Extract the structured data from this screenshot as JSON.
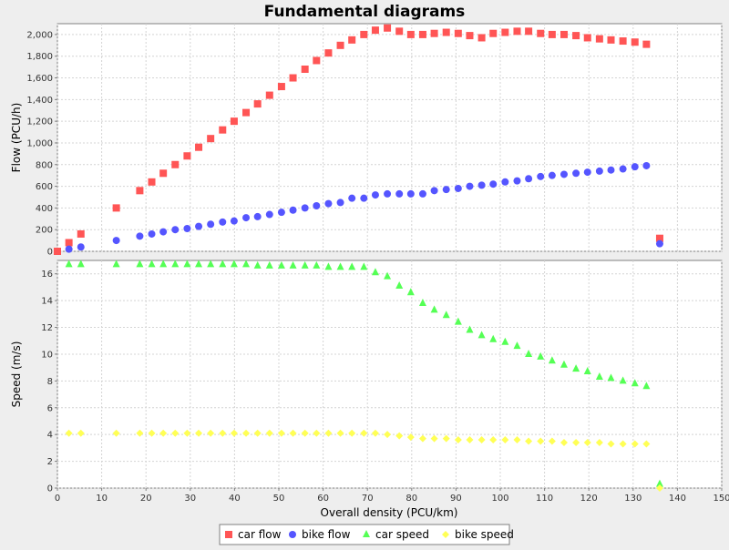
{
  "chart_data": {
    "type": "scatter",
    "title": "Fundamental diagrams",
    "xlabel": "Overall density (PCU/km)",
    "xlim": [
      0,
      150
    ],
    "x_ticks": [
      0,
      10,
      20,
      30,
      40,
      50,
      60,
      70,
      80,
      90,
      100,
      110,
      120,
      130,
      140,
      150
    ],
    "grid": true,
    "legend_position": "bottom-center",
    "panels": [
      {
        "ylabel": "Flow (PCU/h)",
        "ylim": [
          0,
          2100
        ],
        "y_ticks": [
          0,
          200,
          400,
          600,
          800,
          1000,
          1200,
          1400,
          1600,
          1800,
          2000
        ],
        "y_tick_labels": [
          "0",
          "200",
          "400",
          "600",
          "800",
          "1,000",
          "1,200",
          "1,400",
          "1,600",
          "1,800",
          "2,000"
        ],
        "series": [
          {
            "name": "car flow",
            "marker": "square",
            "color": "#ff5555",
            "points": [
              [
                0,
                0
              ],
              [
                2.6,
                80
              ],
              [
                5.3,
                160
              ],
              [
                13.3,
                400
              ],
              [
                18.6,
                560
              ],
              [
                21.3,
                640
              ],
              [
                23.9,
                720
              ],
              [
                26.6,
                800
              ],
              [
                29.3,
                880
              ],
              [
                31.9,
                960
              ],
              [
                34.6,
                1040
              ],
              [
                37.3,
                1120
              ],
              [
                39.9,
                1200
              ],
              [
                42.6,
                1280
              ],
              [
                45.2,
                1360
              ],
              [
                47.9,
                1440
              ],
              [
                50.6,
                1520
              ],
              [
                53.2,
                1600
              ],
              [
                55.9,
                1680
              ],
              [
                58.5,
                1760
              ],
              [
                61.2,
                1830
              ],
              [
                63.9,
                1900
              ],
              [
                66.5,
                1950
              ],
              [
                69.2,
                2000
              ],
              [
                71.8,
                2040
              ],
              [
                74.5,
                2060
              ],
              [
                77.2,
                2030
              ],
              [
                79.8,
                2000
              ],
              [
                82.5,
                2000
              ],
              [
                85.1,
                2010
              ],
              [
                87.8,
                2020
              ],
              [
                90.5,
                2010
              ],
              [
                93.1,
                1990
              ],
              [
                95.8,
                1970
              ],
              [
                98.4,
                2010
              ],
              [
                101.1,
                2020
              ],
              [
                103.8,
                2030
              ],
              [
                106.4,
                2030
              ],
              [
                109.1,
                2010
              ],
              [
                111.7,
                2000
              ],
              [
                114.4,
                2000
              ],
              [
                117.1,
                1990
              ],
              [
                119.7,
                1970
              ],
              [
                122.4,
                1960
              ],
              [
                125.0,
                1950
              ],
              [
                127.7,
                1940
              ],
              [
                130.4,
                1930
              ],
              [
                133.0,
                1910
              ],
              [
                136.0,
                120
              ]
            ]
          },
          {
            "name": "bike flow",
            "marker": "circle",
            "color": "#5555ff",
            "points": [
              [
                2.6,
                20
              ],
              [
                5.3,
                40
              ],
              [
                13.3,
                100
              ],
              [
                18.6,
                140
              ],
              [
                21.3,
                160
              ],
              [
                23.9,
                180
              ],
              [
                26.6,
                200
              ],
              [
                29.3,
                210
              ],
              [
                31.9,
                230
              ],
              [
                34.6,
                250
              ],
              [
                37.3,
                270
              ],
              [
                39.9,
                280
              ],
              [
                42.6,
                310
              ],
              [
                45.2,
                320
              ],
              [
                47.9,
                340
              ],
              [
                50.6,
                360
              ],
              [
                53.2,
                380
              ],
              [
                55.9,
                400
              ],
              [
                58.5,
                420
              ],
              [
                61.2,
                440
              ],
              [
                63.9,
                450
              ],
              [
                66.5,
                490
              ],
              [
                69.2,
                490
              ],
              [
                71.8,
                520
              ],
              [
                74.5,
                530
              ],
              [
                77.2,
                530
              ],
              [
                79.8,
                530
              ],
              [
                82.5,
                530
              ],
              [
                85.1,
                560
              ],
              [
                87.8,
                570
              ],
              [
                90.5,
                580
              ],
              [
                93.1,
                600
              ],
              [
                95.8,
                610
              ],
              [
                98.4,
                620
              ],
              [
                101.1,
                640
              ],
              [
                103.8,
                650
              ],
              [
                106.4,
                670
              ],
              [
                109.1,
                690
              ],
              [
                111.7,
                700
              ],
              [
                114.4,
                710
              ],
              [
                117.1,
                720
              ],
              [
                119.7,
                730
              ],
              [
                122.4,
                740
              ],
              [
                125.0,
                750
              ],
              [
                127.7,
                760
              ],
              [
                130.4,
                780
              ],
              [
                133.0,
                790
              ],
              [
                136.0,
                70
              ]
            ]
          }
        ]
      },
      {
        "ylabel": "Speed (m/s)",
        "ylim": [
          0,
          17
        ],
        "y_ticks": [
          0,
          2,
          4,
          6,
          8,
          10,
          12,
          14,
          16
        ],
        "y_tick_labels": [
          "0",
          "2",
          "4",
          "6",
          "8",
          "10",
          "12",
          "14",
          "16"
        ],
        "series": [
          {
            "name": "car speed",
            "marker": "triangle",
            "color": "#55ff55",
            "points": [
              [
                2.6,
                16.7
              ],
              [
                5.3,
                16.7
              ],
              [
                13.3,
                16.7
              ],
              [
                18.6,
                16.7
              ],
              [
                21.3,
                16.7
              ],
              [
                23.9,
                16.7
              ],
              [
                26.6,
                16.7
              ],
              [
                29.3,
                16.7
              ],
              [
                31.9,
                16.7
              ],
              [
                34.6,
                16.7
              ],
              [
                37.3,
                16.7
              ],
              [
                39.9,
                16.7
              ],
              [
                42.6,
                16.7
              ],
              [
                45.2,
                16.6
              ],
              [
                47.9,
                16.6
              ],
              [
                50.6,
                16.6
              ],
              [
                53.2,
                16.6
              ],
              [
                55.9,
                16.6
              ],
              [
                58.5,
                16.6
              ],
              [
                61.2,
                16.5
              ],
              [
                63.9,
                16.5
              ],
              [
                66.5,
                16.5
              ],
              [
                69.2,
                16.5
              ],
              [
                71.8,
                16.1
              ],
              [
                74.5,
                15.8
              ],
              [
                77.2,
                15.1
              ],
              [
                79.8,
                14.6
              ],
              [
                82.5,
                13.8
              ],
              [
                85.1,
                13.3
              ],
              [
                87.8,
                12.9
              ],
              [
                90.5,
                12.4
              ],
              [
                93.1,
                11.8
              ],
              [
                95.8,
                11.4
              ],
              [
                98.4,
                11.1
              ],
              [
                101.1,
                10.9
              ],
              [
                103.8,
                10.6
              ],
              [
                106.4,
                10.0
              ],
              [
                109.1,
                9.8
              ],
              [
                111.7,
                9.5
              ],
              [
                114.4,
                9.2
              ],
              [
                117.1,
                8.9
              ],
              [
                119.7,
                8.7
              ],
              [
                122.4,
                8.3
              ],
              [
                125.0,
                8.2
              ],
              [
                127.7,
                8.0
              ],
              [
                130.4,
                7.8
              ],
              [
                133.0,
                7.6
              ],
              [
                136.0,
                0.3
              ]
            ]
          },
          {
            "name": "bike speed",
            "marker": "diamond",
            "color": "#ffff55",
            "points": [
              [
                2.6,
                4.1
              ],
              [
                5.3,
                4.1
              ],
              [
                13.3,
                4.1
              ],
              [
                18.6,
                4.1
              ],
              [
                21.3,
                4.1
              ],
              [
                23.9,
                4.1
              ],
              [
                26.6,
                4.1
              ],
              [
                29.3,
                4.1
              ],
              [
                31.9,
                4.1
              ],
              [
                34.6,
                4.1
              ],
              [
                37.3,
                4.1
              ],
              [
                39.9,
                4.1
              ],
              [
                42.6,
                4.1
              ],
              [
                45.2,
                4.1
              ],
              [
                47.9,
                4.1
              ],
              [
                50.6,
                4.1
              ],
              [
                53.2,
                4.1
              ],
              [
                55.9,
                4.1
              ],
              [
                58.5,
                4.1
              ],
              [
                61.2,
                4.1
              ],
              [
                63.9,
                4.1
              ],
              [
                66.5,
                4.1
              ],
              [
                69.2,
                4.1
              ],
              [
                71.8,
                4.1
              ],
              [
                74.5,
                4.0
              ],
              [
                77.2,
                3.9
              ],
              [
                79.8,
                3.8
              ],
              [
                82.5,
                3.7
              ],
              [
                85.1,
                3.7
              ],
              [
                87.8,
                3.7
              ],
              [
                90.5,
                3.6
              ],
              [
                93.1,
                3.6
              ],
              [
                95.8,
                3.6
              ],
              [
                98.4,
                3.6
              ],
              [
                101.1,
                3.6
              ],
              [
                103.8,
                3.6
              ],
              [
                106.4,
                3.5
              ],
              [
                109.1,
                3.5
              ],
              [
                111.7,
                3.5
              ],
              [
                114.4,
                3.4
              ],
              [
                117.1,
                3.4
              ],
              [
                119.7,
                3.4
              ],
              [
                122.4,
                3.4
              ],
              [
                125.0,
                3.3
              ],
              [
                127.7,
                3.3
              ],
              [
                130.4,
                3.3
              ],
              [
                133.0,
                3.3
              ],
              [
                136.0,
                0.0
              ]
            ]
          }
        ]
      }
    ]
  }
}
